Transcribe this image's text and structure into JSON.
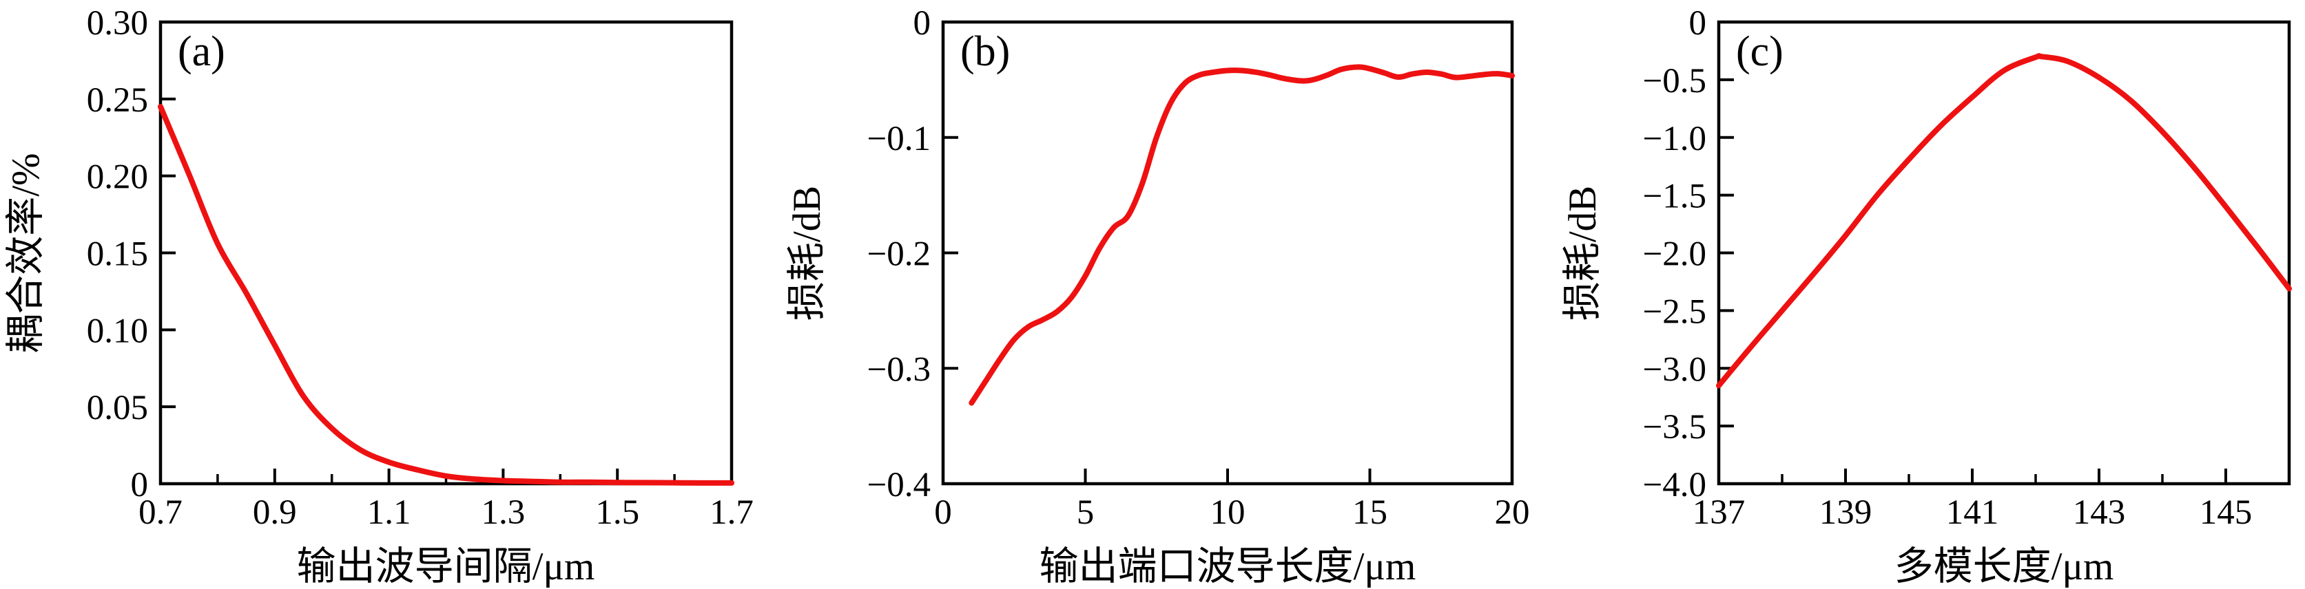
{
  "chart_data": [
    {
      "type": "line",
      "title": "(a)",
      "xlabel": "输出波导间隔/μm",
      "ylabel": "耦合效率/%",
      "xlim": [
        0.7,
        1.7
      ],
      "ylim": [
        0,
        0.3
      ],
      "grid": false,
      "legend": null,
      "line_color": "#ee1111",
      "x_ticks": [
        0.7,
        0.9,
        1.1,
        1.3,
        1.5,
        1.7
      ],
      "x_tick_labels": [
        "0.7",
        "0.9",
        "1.1",
        "1.3",
        "1.5",
        "1.7"
      ],
      "x_minor_ticks": [
        0.8,
        1.0,
        1.2,
        1.4,
        1.6
      ],
      "y_ticks": [
        0,
        0.05,
        0.1,
        0.15,
        0.2,
        0.25,
        0.3
      ],
      "y_tick_labels": [
        "0",
        "0.05",
        "0.10",
        "0.15",
        "0.20",
        "0.25",
        "0.30"
      ],
      "series": [
        {
          "name": "耦合效率",
          "x": [
            0.7,
            0.75,
            0.8,
            0.85,
            0.9,
            0.95,
            1.0,
            1.05,
            1.1,
            1.15,
            1.2,
            1.25,
            1.3,
            1.35,
            1.4,
            1.45,
            1.5,
            1.55,
            1.6,
            1.65,
            1.7
          ],
          "y": [
            0.245,
            0.201,
            0.156,
            0.124,
            0.09,
            0.057,
            0.036,
            0.022,
            0.014,
            0.009,
            0.005,
            0.003,
            0.002,
            0.0015,
            0.001,
            0.001,
            0.0008,
            0.0007,
            0.0006,
            0.0005,
            0.0005
          ]
        }
      ]
    },
    {
      "type": "line",
      "title": "(b)",
      "xlabel": "输出端口波导长度/μm",
      "ylabel": "损耗/dB",
      "xlim": [
        0,
        20
      ],
      "ylim": [
        -0.4,
        0
      ],
      "grid": false,
      "legend": null,
      "line_color": "#ee1111",
      "x_ticks": [
        0,
        5,
        10,
        15,
        20
      ],
      "x_tick_labels": [
        "0",
        "5",
        "10",
        "15",
        "20"
      ],
      "x_minor_ticks": [],
      "y_ticks": [
        0,
        -0.1,
        -0.2,
        -0.3,
        -0.4
      ],
      "y_tick_labels": [
        "0",
        "−0.1",
        "−0.2",
        "−0.3",
        "−0.4"
      ],
      "series": [
        {
          "name": "损耗",
          "x": [
            1,
            1.5,
            2,
            2.5,
            3,
            3.5,
            4,
            4.5,
            5,
            5.5,
            6,
            6.5,
            7,
            7.5,
            8,
            8.5,
            9,
            9.5,
            10,
            10.5,
            11,
            11.5,
            12,
            12.6,
            13,
            13.5,
            14,
            14.6,
            15,
            15.5,
            16,
            16.5,
            17,
            17.5,
            18,
            18.5,
            19,
            19.5,
            20
          ],
          "y": [
            -0.33,
            -0.311,
            -0.292,
            -0.275,
            -0.264,
            -0.258,
            -0.251,
            -0.239,
            -0.22,
            -0.196,
            -0.178,
            -0.168,
            -0.14,
            -0.1,
            -0.07,
            -0.053,
            -0.046,
            -0.0435,
            -0.042,
            -0.042,
            -0.0435,
            -0.046,
            -0.049,
            -0.051,
            -0.05,
            -0.046,
            -0.041,
            -0.039,
            -0.0405,
            -0.044,
            -0.0477,
            -0.045,
            -0.0435,
            -0.045,
            -0.048,
            -0.047,
            -0.0455,
            -0.0448,
            -0.0465
          ]
        }
      ]
    },
    {
      "type": "line",
      "title": "(c)",
      "xlabel": "多模长度/μm",
      "ylabel": "损耗/dB",
      "xlim": [
        137,
        146
      ],
      "ylim": [
        -4.0,
        0
      ],
      "grid": false,
      "legend": null,
      "line_color": "#ee1111",
      "x_ticks": [
        137,
        139,
        141,
        143,
        145
      ],
      "x_tick_labels": [
        "137",
        "139",
        "141",
        "143",
        "145"
      ],
      "x_minor_ticks": [
        138,
        140,
        142,
        144,
        146
      ],
      "y_ticks": [
        0,
        -0.5,
        -1.0,
        -1.5,
        -2.0,
        -2.5,
        -3.0,
        -3.5,
        -4.0
      ],
      "y_tick_labels": [
        "0",
        "−0.5",
        "−1.0",
        "−1.5",
        "−2.0",
        "−2.5",
        "−3.0",
        "−3.5",
        "−4.0"
      ],
      "series": [
        {
          "name": "损耗",
          "x": [
            137,
            137.5,
            138,
            138.5,
            139,
            139.5,
            140,
            140.5,
            141,
            141.5,
            142,
            142.1,
            142.5,
            143,
            143.5,
            144,
            144.5,
            145,
            145.5,
            146
          ],
          "y": [
            -3.15,
            -2.82,
            -2.5,
            -2.18,
            -1.85,
            -1.5,
            -1.19,
            -0.9,
            -0.65,
            -0.42,
            -0.305,
            -0.3,
            -0.34,
            -0.48,
            -0.68,
            -0.95,
            -1.26,
            -1.6,
            -1.95,
            -2.31
          ]
        }
      ]
    }
  ]
}
